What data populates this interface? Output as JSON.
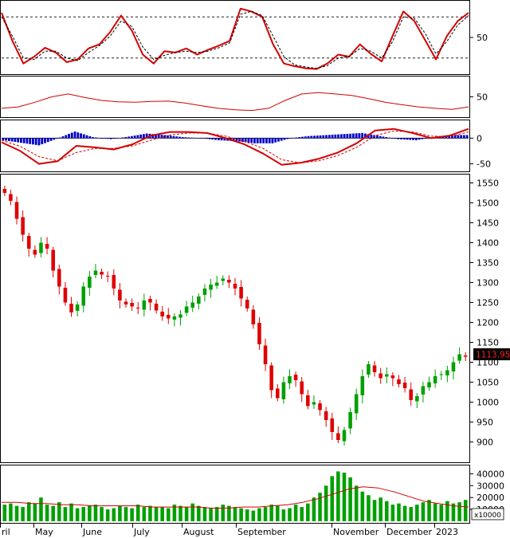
{
  "chart_data": [
    {
      "panel": "stochastic",
      "type": "line",
      "y_ticks": [
        50
      ],
      "ylim": [
        0,
        100
      ],
      "reference_lines": [
        80,
        20
      ],
      "series": [
        {
          "color": "#d40000",
          "style": "solid",
          "values": [
            86,
            45,
            12,
            22,
            35,
            28,
            14,
            18,
            34,
            40,
            58,
            82,
            60,
            25,
            12,
            30,
            28,
            34,
            25,
            32,
            38,
            45,
            92,
            88,
            80,
            40,
            12,
            8,
            5,
            4,
            12,
            25,
            22,
            40,
            26,
            15,
            52,
            88,
            74,
            46,
            18,
            52,
            74,
            86
          ]
        },
        {
          "color": "#000000",
          "style": "dashed",
          "values": [
            80,
            52,
            20,
            18,
            30,
            30,
            20,
            16,
            28,
            38,
            52,
            74,
            66,
            36,
            18,
            24,
            28,
            30,
            28,
            30,
            35,
            42,
            84,
            88,
            82,
            52,
            22,
            10,
            7,
            5,
            9,
            20,
            22,
            34,
            30,
            20,
            44,
            80,
            78,
            56,
            26,
            44,
            68,
            82
          ]
        }
      ]
    },
    {
      "panel": "rsi",
      "type": "line",
      "y_ticks": [
        50
      ],
      "ylim": [
        0,
        100
      ],
      "series": [
        {
          "color": "#d40000",
          "values": [
            18,
            22,
            35,
            50,
            58,
            48,
            40,
            36,
            35,
            37,
            38,
            33,
            25,
            18,
            14,
            12,
            18,
            40,
            58,
            62,
            58,
            54,
            45,
            35,
            28,
            22,
            18,
            15,
            22
          ]
        }
      ]
    },
    {
      "panel": "macd",
      "type": "line",
      "y_ticks": [
        0,
        -50
      ],
      "ylim": [
        -60,
        30
      ],
      "series": [
        {
          "name": "macd",
          "color": "#d40000",
          "values": [
            -8,
            -25,
            -50,
            -45,
            -15,
            -18,
            -22,
            -12,
            5,
            12,
            12,
            10,
            0,
            -12,
            -30,
            -52,
            -48,
            -40,
            -28,
            -10,
            15,
            18,
            10,
            0,
            5,
            18
          ]
        },
        {
          "name": "signal",
          "color": "#d40000",
          "style": "dashed",
          "values": [
            -4,
            -16,
            -36,
            -44,
            -28,
            -20,
            -20,
            -15,
            -4,
            6,
            10,
            10,
            4,
            -6,
            -20,
            -42,
            -48,
            -44,
            -34,
            -18,
            5,
            14,
            12,
            4,
            3,
            12
          ]
        },
        {
          "name": "histogram",
          "type": "bar",
          "color": "#0000cc",
          "values": [
            -4,
            -9,
            -14,
            -1,
            13,
            2,
            -2,
            3,
            9,
            6,
            2,
            0,
            -4,
            -6,
            -10,
            -10,
            0,
            4,
            6,
            8,
            10,
            4,
            -2,
            -4,
            2,
            6
          ]
        }
      ]
    },
    {
      "panel": "price",
      "type": "candlestick",
      "y_ticks": [
        900,
        950,
        1000,
        1050,
        1100,
        1150,
        1200,
        1250,
        1300,
        1350,
        1400,
        1450,
        1500,
        1550
      ],
      "ylim": [
        855,
        1565
      ],
      "last_price_label": "1113.950",
      "close_values": [
        1525,
        1505,
        1460,
        1420,
        1385,
        1370,
        1400,
        1385,
        1330,
        1290,
        1250,
        1225,
        1245,
        1290,
        1315,
        1330,
        1320,
        1315,
        1285,
        1255,
        1245,
        1240,
        1235,
        1255,
        1250,
        1230,
        1215,
        1210,
        1215,
        1220,
        1240,
        1250,
        1265,
        1285,
        1295,
        1300,
        1310,
        1300,
        1285,
        1260,
        1235,
        1195,
        1145,
        1095,
        1030,
        1010,
        1050,
        1065,
        1055,
        1020,
        990,
        1000,
        980,
        955,
        925,
        905,
        930,
        975,
        1020,
        1065,
        1095,
        1075,
        1060,
        1070,
        1060,
        1045,
        1035,
        1005,
        1015,
        1040,
        1050,
        1065,
        1070,
        1080,
        1100,
        1120,
        1114
      ],
      "volume": {
        "y_ticks": [
          10000,
          20000,
          30000,
          40000
        ],
        "ylim": [
          0,
          45000
        ],
        "unit_label": "x10000",
        "values": [
          14000,
          15000,
          13000,
          12000,
          16000,
          15000,
          20000,
          14000,
          13000,
          16000,
          12000,
          15000,
          11000,
          12000,
          13000,
          14000,
          12000,
          10000,
          11000,
          13000,
          12000,
          11000,
          14000,
          12000,
          13000,
          12000,
          12000,
          11000,
          14000,
          13000,
          12000,
          15000,
          13000,
          12000,
          11000,
          12000,
          14000,
          13000,
          12000,
          11000,
          10000,
          9000,
          11000,
          12000,
          14000,
          13000,
          10000,
          11000,
          14000,
          12000,
          15000,
          20000,
          24000,
          30000,
          38000,
          42000,
          41000,
          37000,
          30000,
          25000,
          22000,
          18000,
          20000,
          17000,
          14000,
          15000,
          13000,
          12000,
          14000,
          16000,
          18000,
          15000,
          14000,
          17000,
          15000,
          16000,
          18000
        ],
        "moving_average": [
          16000,
          16000,
          15000,
          15000,
          14000,
          14000,
          13000,
          13000,
          13000,
          13000,
          12000,
          12000,
          12000,
          12000,
          11000,
          11000,
          12000,
          12000,
          13000,
          14000,
          16000,
          19000,
          23000,
          27000,
          29000,
          28000,
          25000,
          21000,
          17000,
          15000,
          13000,
          12000
        ]
      },
      "x_tick_labels": [
        "ril",
        "May",
        "June",
        "July",
        "August",
        "September",
        "November",
        "December",
        "2023"
      ]
    }
  ]
}
